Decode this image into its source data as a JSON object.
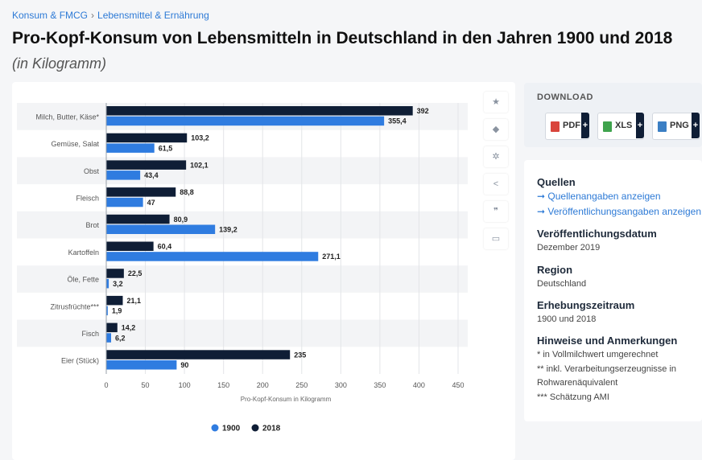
{
  "breadcrumb": {
    "item1": "Konsum & FMCG",
    "sep": "›",
    "item2": "Lebensmittel & Ernährung"
  },
  "title": "Pro-Kopf-Konsum von Lebensmitteln in Deutschland in den Jahren 1900 und 2018",
  "subtitle": "(in Kilogramm)",
  "chart_data": {
    "type": "bar",
    "orientation": "horizontal",
    "categories": [
      "Milch, Butter, Käse*",
      "Gemüse, Salat",
      "Obst",
      "Fleisch",
      "Brot",
      "Kartoffeln",
      "Öle, Fette",
      "Zitrusfrüchte***",
      "Fisch",
      "Eier (Stück)"
    ],
    "series": [
      {
        "name": "2018",
        "color": "#0f1e36",
        "values": [
          392,
          103.2,
          102.1,
          88.8,
          80.9,
          60.4,
          22.5,
          21.1,
          14.2,
          235
        ],
        "labels": [
          "392",
          "103,2",
          "102,1",
          "88,8",
          "80,9",
          "60,4",
          "22,5",
          "21,1",
          "14,2",
          "235"
        ]
      },
      {
        "name": "1900",
        "color": "#2f7ce0",
        "values": [
          355.4,
          61.5,
          43.4,
          47,
          139.2,
          271.1,
          3.2,
          1.9,
          6.2,
          90
        ],
        "labels": [
          "355,4",
          "61,5",
          "43,4",
          "47",
          "139,2",
          "271,1",
          "3,2",
          "1,9",
          "6,2",
          "90"
        ]
      }
    ],
    "xlim": [
      0,
      450
    ],
    "ticks": [
      "0",
      "50",
      "100",
      "150",
      "200",
      "250",
      "300",
      "350",
      "400",
      "450"
    ],
    "xlabel": "Pro-Kopf-Konsum in Kilogramm",
    "ylabel": "",
    "legend": [
      "1900",
      "2018"
    ],
    "legend_position": "bottom",
    "grid": true
  },
  "tools": [
    "star-icon",
    "bell-icon",
    "gear-icon",
    "share-icon",
    "quote-icon",
    "print-icon"
  ],
  "download": {
    "title": "DOWNLOAD",
    "buttons": [
      {
        "label": "PDF",
        "icon": "pdf-file-icon",
        "color": "#d9453c"
      },
      {
        "label": "XLS",
        "icon": "xls-file-icon",
        "color": "#3fa34d"
      },
      {
        "label": "PNG",
        "icon": "png-file-icon",
        "color": "#3b7fc4"
      }
    ],
    "plus": "+"
  },
  "info": {
    "sources_heading": "Quellen",
    "source_link1": "➞ Quellenangaben anzeigen",
    "source_link2": "➞ Veröffentlichungsangaben anzeigen",
    "pubdate_heading": "Veröffentlichungsdatum",
    "pubdate": "Dezember 2019",
    "region_heading": "Region",
    "region": "Deutschland",
    "period_heading": "Erhebungszeitraum",
    "period": "1900 und 2018",
    "notes_heading": "Hinweise und Anmerkungen",
    "note1": "* in Vollmilchwert umgerechnet",
    "note2": "** inkl. Verarbeitungserzeugnisse in",
    "note3": "Rohwarenäquivalent",
    "note4": "*** Schätzung AMI"
  }
}
